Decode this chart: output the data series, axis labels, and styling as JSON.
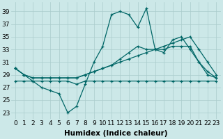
{
  "xlabel": "Humidex (Indice chaleur)",
  "bg_color": "#cce8e8",
  "grid_color": "#aacccc",
  "line_color": "#006666",
  "x_ticks": [
    0,
    1,
    2,
    3,
    4,
    5,
    6,
    7,
    8,
    9,
    10,
    11,
    12,
    13,
    14,
    15,
    16,
    17,
    18,
    19,
    20,
    21,
    22,
    23
  ],
  "y_ticks": [
    23,
    25,
    27,
    29,
    31,
    33,
    35,
    37,
    39
  ],
  "ylim": [
    22.0,
    40.5
  ],
  "xlim": [
    -0.5,
    23.5
  ],
  "s1_y": [
    30,
    29,
    28,
    27,
    26.5,
    26,
    23,
    24,
    27.5,
    31,
    33.5,
    38.5,
    39.0,
    38.5,
    36.5,
    39.5,
    33,
    32.5,
    34.5,
    35,
    33,
    31,
    29.5,
    28.5
  ],
  "s2_y": [
    30,
    29,
    28.5,
    28.5,
    28.5,
    28.5,
    28.5,
    28.5,
    29,
    29.5,
    30,
    30.5,
    31,
    31.5,
    32.0,
    32.5,
    33,
    33.0,
    33.5,
    33.5,
    33.5,
    31,
    29,
    28.5
  ],
  "s3_y": [
    30,
    29,
    28.5,
    28.5,
    28.5,
    28.5,
    28.5,
    28.5,
    29,
    29.5,
    30,
    30.5,
    31.5,
    32.5,
    33.5,
    33.0,
    33.0,
    33.5,
    34.0,
    34.5,
    35.0,
    33.0,
    31.0,
    29.0
  ],
  "s4_y": [
    28,
    28,
    28,
    28,
    28,
    28,
    28,
    27.5,
    28,
    28,
    28,
    28,
    28,
    28,
    28,
    28,
    28,
    28,
    28,
    28,
    28,
    28,
    28,
    28
  ],
  "tick_fontsize": 6.5,
  "label_fontsize": 7.5
}
